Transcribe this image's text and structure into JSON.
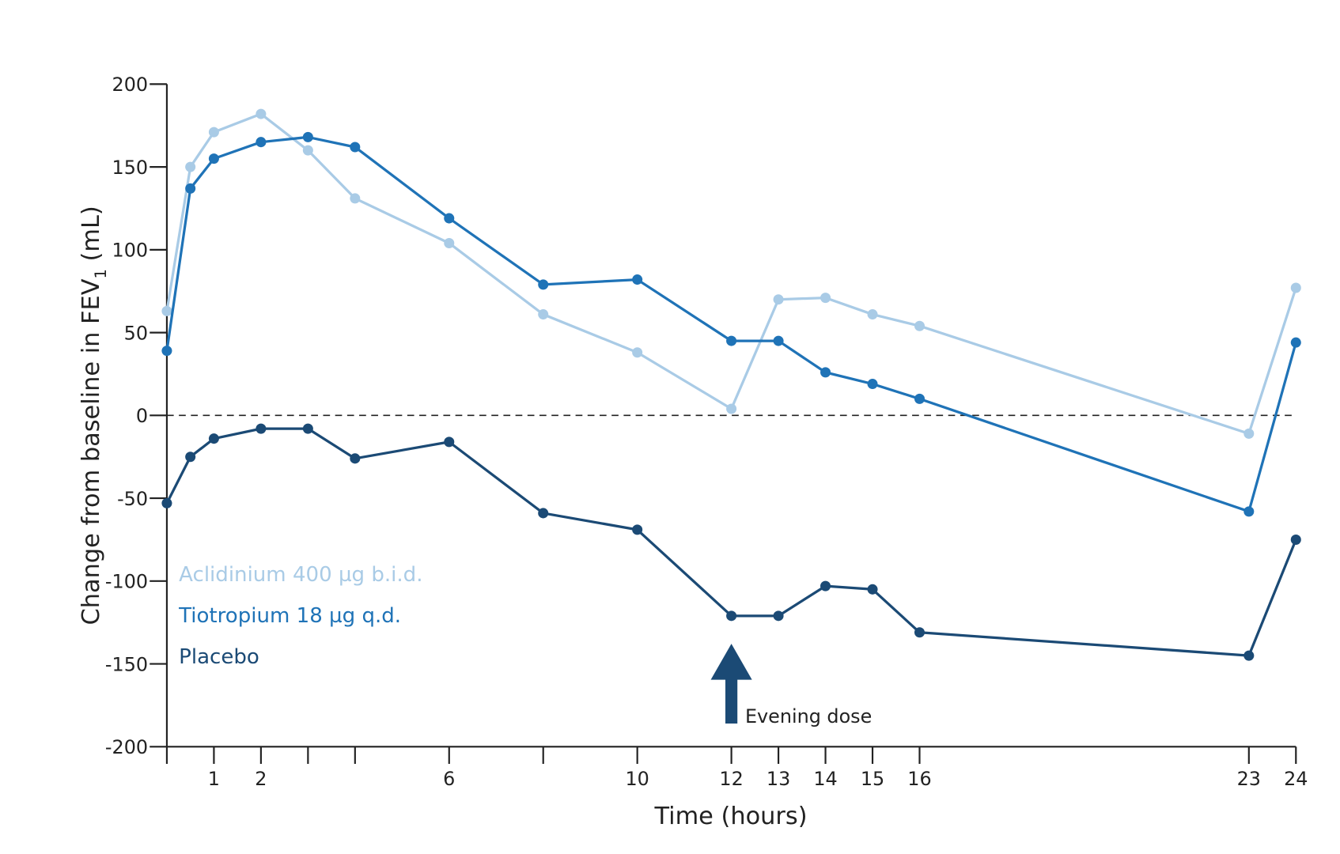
{
  "chart_data": {
    "type": "line",
    "title": "",
    "xlabel": "Time (hours)",
    "ylabel": "Change from baseline in FEV",
    "ylabel_subscript": "1",
    "ylabel_unit": " (mL)",
    "xlim": [
      0,
      24
    ],
    "ylim": [
      -200,
      200
    ],
    "yticks": [
      200,
      150,
      100,
      50,
      0,
      -50,
      -100,
      -150,
      -200
    ],
    "xticks": [
      0,
      1,
      2,
      3,
      4,
      6,
      8,
      10,
      12,
      13,
      14,
      15,
      16,
      23,
      24
    ],
    "xtick_labels": {
      "1": "1",
      "2": "2",
      "6": "6",
      "10": "10",
      "12": "12",
      "13": "13",
      "14": "14",
      "15": "15",
      "16": "16",
      "23": "23",
      "24": "24"
    },
    "grid": false,
    "reference_line": {
      "y": 0,
      "style": "dashed"
    },
    "legend_placement": "bottom-left",
    "x": [
      0,
      0.5,
      1,
      2,
      3,
      4,
      6,
      8,
      10,
      12,
      13,
      14,
      15,
      16,
      23,
      24
    ],
    "series": [
      {
        "name": "Aclidinium 400 µg b.i.d.",
        "color": "#a9cbe6",
        "values": [
          63,
          150,
          171,
          182,
          160,
          131,
          104,
          61,
          38,
          4,
          70,
          71,
          61,
          54,
          -11,
          77
        ]
      },
      {
        "name": "Tiotropium 18 µg q.d.",
        "color": "#1f73b7",
        "values": [
          39,
          137,
          155,
          165,
          168,
          162,
          119,
          79,
          82,
          45,
          45,
          26,
          19,
          10,
          -58,
          44
        ]
      },
      {
        "name": "Placebo",
        "color": "#1b4a75",
        "values": [
          -53,
          -25,
          -14,
          -8,
          -8,
          -26,
          -16,
          -59,
          -69,
          -121,
          -121,
          -103,
          -105,
          -131,
          -145,
          -75
        ]
      }
    ],
    "annotations": [
      {
        "text": "Evening dose",
        "x": 12,
        "marker": "up-arrow",
        "color": "#1b4a75"
      }
    ]
  }
}
